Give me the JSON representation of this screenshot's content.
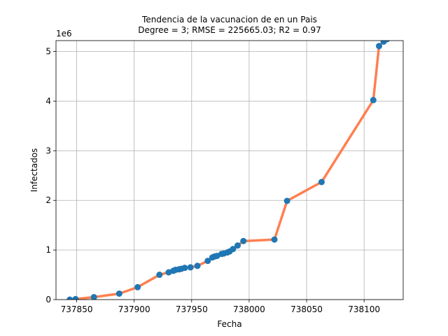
{
  "chart_data": {
    "type": "line",
    "title_line1": "Tendencia de la vacunacion de en un Pais",
    "title_line2": "Degree = 3; RMSE = 225665.03; R2 = 0.97",
    "xlabel": "Fecha",
    "ylabel": "Infectados",
    "y_offset_label": "1e6",
    "xlim": [
      737832,
      738134
    ],
    "ylim": [
      0,
      5.22
    ],
    "y_scale_multiplier": 1000000,
    "xticks": [
      737850,
      737900,
      737950,
      738000,
      738050,
      738100
    ],
    "yticks": [
      0,
      1,
      2,
      3,
      4,
      5
    ],
    "grid": true,
    "colors": {
      "points": "#1f77b4",
      "line": "#ff7f50"
    },
    "series": [
      {
        "type": "scatter",
        "x": [
          737844,
          737849,
          737865,
          737887,
          737903,
          737922,
          737930,
          737934,
          737936,
          737939,
          737941,
          737944,
          737949,
          737955,
          737964,
          737968,
          737970,
          737972,
          737976,
          737978,
          737981,
          737983,
          737986,
          737990,
          737995,
          738022,
          738033,
          738063,
          738108,
          738113,
          738117,
          738120
        ],
        "y": [
          0.0,
          0.01,
          0.05,
          0.12,
          0.25,
          0.5,
          0.55,
          0.58,
          0.6,
          0.61,
          0.62,
          0.64,
          0.65,
          0.68,
          0.78,
          0.85,
          0.87,
          0.88,
          0.92,
          0.93,
          0.95,
          0.97,
          1.02,
          1.09,
          1.18,
          1.21,
          1.99,
          2.37,
          4.02,
          5.11,
          5.2,
          5.25
        ]
      },
      {
        "type": "line",
        "x": [
          737844,
          737849,
          737865,
          737887,
          737903,
          737922,
          737930,
          737934,
          737936,
          737939,
          737941,
          737944,
          737949,
          737955,
          737964,
          737968,
          737970,
          737972,
          737976,
          737978,
          737981,
          737983,
          737986,
          737990,
          737995,
          738022,
          738033,
          738063,
          738108,
          738113,
          738117,
          738120
        ],
        "y": [
          0.0,
          0.01,
          0.05,
          0.12,
          0.25,
          0.5,
          0.55,
          0.58,
          0.6,
          0.61,
          0.62,
          0.64,
          0.65,
          0.68,
          0.78,
          0.85,
          0.87,
          0.88,
          0.92,
          0.93,
          0.95,
          0.97,
          1.02,
          1.09,
          1.18,
          1.21,
          1.99,
          2.37,
          4.02,
          5.11,
          5.2,
          5.25
        ]
      }
    ]
  }
}
